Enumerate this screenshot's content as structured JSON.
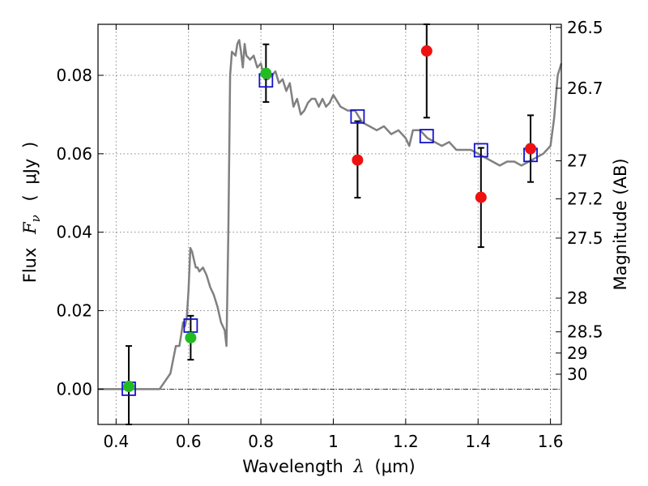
{
  "chart_data": {
    "type": "scatter",
    "title": "",
    "xlabel": "Wavelength",
    "xlabel_symbol": "λ",
    "xlabel_unit_open": "(",
    "xlabel_unit": "μm",
    "xlabel_unit_close": ")",
    "ylabel": "Flux",
    "ylabel_symbol": "F",
    "ylabel_subscript": "ν",
    "ylabel_unit_open": "(",
    "ylabel_unit": "μJy",
    "ylabel_unit_close": ")",
    "y2label": "Magnitude (AB)",
    "xlim": [
      0.35,
      1.63
    ],
    "ylim": [
      -0.009,
      0.093
    ],
    "grid": true,
    "legend": "none",
    "x_ticks": [
      {
        "value": 0.4,
        "label": "0.4"
      },
      {
        "value": 0.6,
        "label": "0.6"
      },
      {
        "value": 0.8,
        "label": "0.8"
      },
      {
        "value": 1.0,
        "label": "1"
      },
      {
        "value": 1.2,
        "label": "1.2"
      },
      {
        "value": 1.4,
        "label": "1.4"
      },
      {
        "value": 1.6,
        "label": "1.6"
      }
    ],
    "y_ticks": [
      {
        "value": 0.0,
        "label": "0.00"
      },
      {
        "value": 0.02,
        "label": "0.02"
      },
      {
        "value": 0.04,
        "label": "0.04"
      },
      {
        "value": 0.06,
        "label": "0.06"
      },
      {
        "value": 0.08,
        "label": "0.08"
      }
    ],
    "magnitude_ticks": [
      {
        "value": 0.0922,
        "label": "26.5"
      },
      {
        "value": 0.0767,
        "label": "26.7"
      },
      {
        "value": 0.0582,
        "label": "27"
      },
      {
        "value": 0.0485,
        "label": "27.2"
      },
      {
        "value": 0.0385,
        "label": "27.5"
      },
      {
        "value": 0.0232,
        "label": "28"
      },
      {
        "value": 0.0146,
        "label": "28.5"
      },
      {
        "value": 0.0092,
        "label": "29"
      },
      {
        "value": 0.0038,
        "label": "30"
      }
    ],
    "zero_line": 0.0,
    "colors": {
      "model": "#808080",
      "detection": "#22bb22",
      "measurement": "#ee1111",
      "model_flux": "#1111cc",
      "errorbar": "#000000",
      "grid": "#888888"
    },
    "model_spectrum": [
      [
        0.35,
        0.0
      ],
      [
        0.52,
        0.0
      ],
      [
        0.55,
        0.004
      ],
      [
        0.565,
        0.011
      ],
      [
        0.575,
        0.011
      ],
      [
        0.58,
        0.014
      ],
      [
        0.585,
        0.017
      ],
      [
        0.59,
        0.016
      ],
      [
        0.595,
        0.018
      ],
      [
        0.6,
        0.025
      ],
      [
        0.605,
        0.036
      ],
      [
        0.61,
        0.035
      ],
      [
        0.615,
        0.033
      ],
      [
        0.62,
        0.031
      ],
      [
        0.625,
        0.031
      ],
      [
        0.63,
        0.03
      ],
      [
        0.64,
        0.031
      ],
      [
        0.65,
        0.029
      ],
      [
        0.66,
        0.026
      ],
      [
        0.67,
        0.024
      ],
      [
        0.68,
        0.021
      ],
      [
        0.69,
        0.017
      ],
      [
        0.7,
        0.015
      ],
      [
        0.705,
        0.011
      ],
      [
        0.71,
        0.04
      ],
      [
        0.715,
        0.08
      ],
      [
        0.72,
        0.086
      ],
      [
        0.73,
        0.085
      ],
      [
        0.735,
        0.088
      ],
      [
        0.74,
        0.089
      ],
      [
        0.745,
        0.086
      ],
      [
        0.75,
        0.082
      ],
      [
        0.755,
        0.088
      ],
      [
        0.76,
        0.085
      ],
      [
        0.77,
        0.084
      ],
      [
        0.78,
        0.085
      ],
      [
        0.79,
        0.082
      ],
      [
        0.8,
        0.083
      ],
      [
        0.81,
        0.079
      ],
      [
        0.82,
        0.079
      ],
      [
        0.83,
        0.08
      ],
      [
        0.84,
        0.081
      ],
      [
        0.85,
        0.078
      ],
      [
        0.86,
        0.079
      ],
      [
        0.87,
        0.076
      ],
      [
        0.88,
        0.078
      ],
      [
        0.89,
        0.072
      ],
      [
        0.9,
        0.074
      ],
      [
        0.91,
        0.07
      ],
      [
        0.92,
        0.071
      ],
      [
        0.93,
        0.073
      ],
      [
        0.94,
        0.074
      ],
      [
        0.95,
        0.074
      ],
      [
        0.96,
        0.072
      ],
      [
        0.97,
        0.074
      ],
      [
        0.98,
        0.072
      ],
      [
        0.99,
        0.073
      ],
      [
        1.0,
        0.075
      ],
      [
        1.02,
        0.072
      ],
      [
        1.04,
        0.071
      ],
      [
        1.06,
        0.071
      ],
      [
        1.08,
        0.068
      ],
      [
        1.1,
        0.067
      ],
      [
        1.12,
        0.066
      ],
      [
        1.14,
        0.067
      ],
      [
        1.16,
        0.065
      ],
      [
        1.18,
        0.066
      ],
      [
        1.2,
        0.064
      ],
      [
        1.21,
        0.062
      ],
      [
        1.22,
        0.066
      ],
      [
        1.24,
        0.066
      ],
      [
        1.26,
        0.064
      ],
      [
        1.28,
        0.063
      ],
      [
        1.3,
        0.062
      ],
      [
        1.32,
        0.063
      ],
      [
        1.34,
        0.061
      ],
      [
        1.36,
        0.061
      ],
      [
        1.38,
        0.061
      ],
      [
        1.4,
        0.06
      ],
      [
        1.42,
        0.059
      ],
      [
        1.44,
        0.058
      ],
      [
        1.46,
        0.057
      ],
      [
        1.48,
        0.058
      ],
      [
        1.5,
        0.058
      ],
      [
        1.52,
        0.057
      ],
      [
        1.54,
        0.058
      ],
      [
        1.56,
        0.059
      ],
      [
        1.58,
        0.06
      ],
      [
        1.6,
        0.062
      ],
      [
        1.61,
        0.069
      ],
      [
        1.62,
        0.08
      ],
      [
        1.63,
        0.083
      ]
    ],
    "detections": [
      {
        "x": 0.435,
        "y": 0.0007
      },
      {
        "x": 0.606,
        "y": 0.0131
      },
      {
        "x": 0.814,
        "y": 0.0805
      }
    ],
    "measurements": [
      {
        "x": 1.067,
        "y": 0.0584
      },
      {
        "x": 1.258,
        "y": 0.0862
      },
      {
        "x": 1.408,
        "y": 0.0489
      },
      {
        "x": 1.545,
        "y": 0.0613
      }
    ],
    "model_fluxes": [
      {
        "x": 0.435,
        "y": 0.0001
      },
      {
        "x": 0.606,
        "y": 0.0162
      },
      {
        "x": 0.814,
        "y": 0.0787
      },
      {
        "x": 1.067,
        "y": 0.0695
      },
      {
        "x": 1.258,
        "y": 0.0645
      },
      {
        "x": 1.408,
        "y": 0.0609
      },
      {
        "x": 1.545,
        "y": 0.0597
      }
    ],
    "errorbars": [
      {
        "x": 0.435,
        "low": -0.009,
        "high": 0.011
      },
      {
        "x": 0.606,
        "low": 0.0075,
        "high": 0.0187
      },
      {
        "x": 0.814,
        "low": 0.0732,
        "high": 0.0879
      },
      {
        "x": 1.067,
        "low": 0.0488,
        "high": 0.0683
      },
      {
        "x": 1.258,
        "low": 0.0692,
        "high": 0.093
      },
      {
        "x": 1.408,
        "low": 0.0362,
        "high": 0.0615
      },
      {
        "x": 1.545,
        "low": 0.0528,
        "high": 0.0698
      }
    ]
  }
}
